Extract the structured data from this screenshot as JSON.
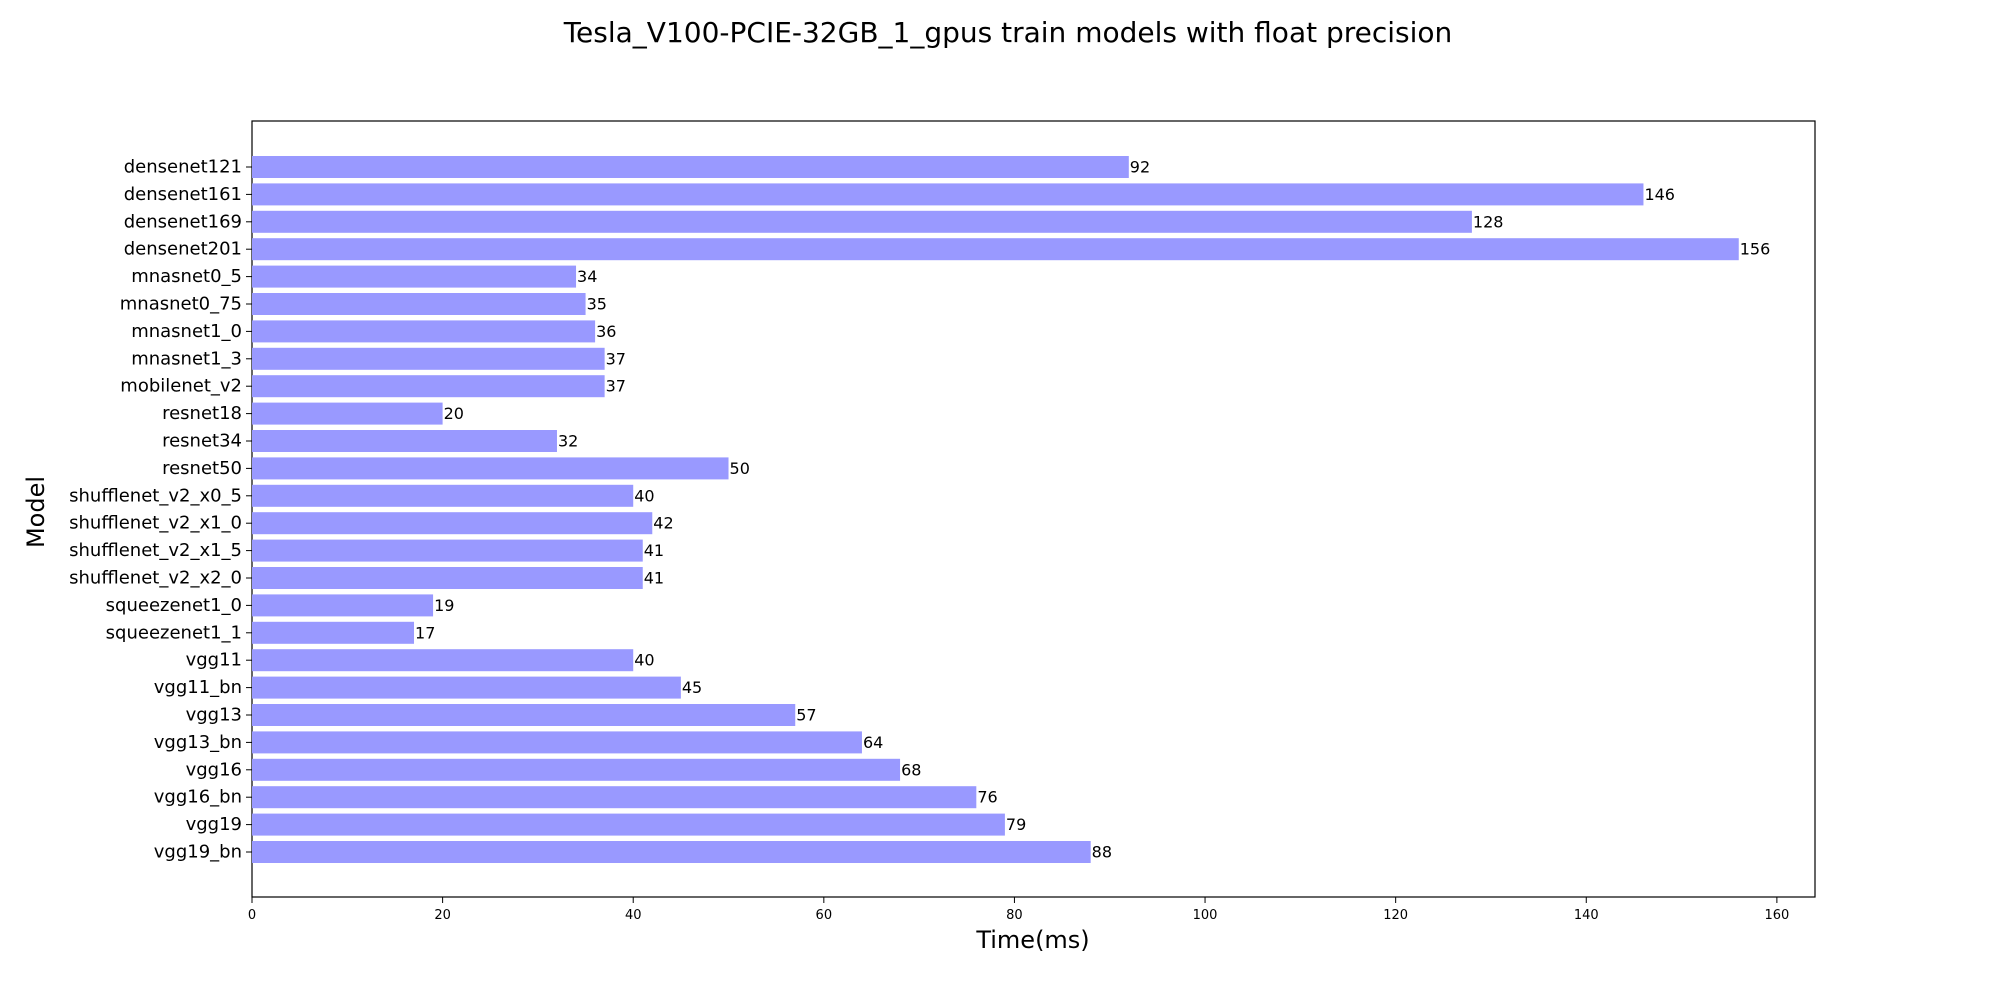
{
  "chart_data": {
    "type": "bar",
    "orientation": "horizontal",
    "title": "Tesla_V100-PCIE-32GB_1_gpus train models with float precision",
    "xlabel": "Time(ms)",
    "ylabel": "Model",
    "xlim": [
      0,
      164
    ],
    "xticks": [
      0,
      20,
      40,
      60,
      80,
      100,
      120,
      140,
      160
    ],
    "bar_color": "#9999ff",
    "grid": false,
    "categories": [
      "densenet121",
      "densenet161",
      "densenet169",
      "densenet201",
      "mnasnet0_5",
      "mnasnet0_75",
      "mnasnet1_0",
      "mnasnet1_3",
      "mobilenet_v2",
      "resnet18",
      "resnet34",
      "resnet50",
      "shufflenet_v2_x0_5",
      "shufflenet_v2_x1_0",
      "shufflenet_v2_x1_5",
      "shufflenet_v2_x2_0",
      "squeezenet1_0",
      "squeezenet1_1",
      "vgg11",
      "vgg11_bn",
      "vgg13",
      "vgg13_bn",
      "vgg16",
      "vgg16_bn",
      "vgg19",
      "vgg19_bn"
    ],
    "values": [
      92,
      146,
      128,
      156,
      34,
      35,
      36,
      37,
      37,
      20,
      32,
      50,
      40,
      42,
      41,
      41,
      19,
      17,
      40,
      45,
      57,
      64,
      68,
      76,
      79,
      88
    ]
  }
}
